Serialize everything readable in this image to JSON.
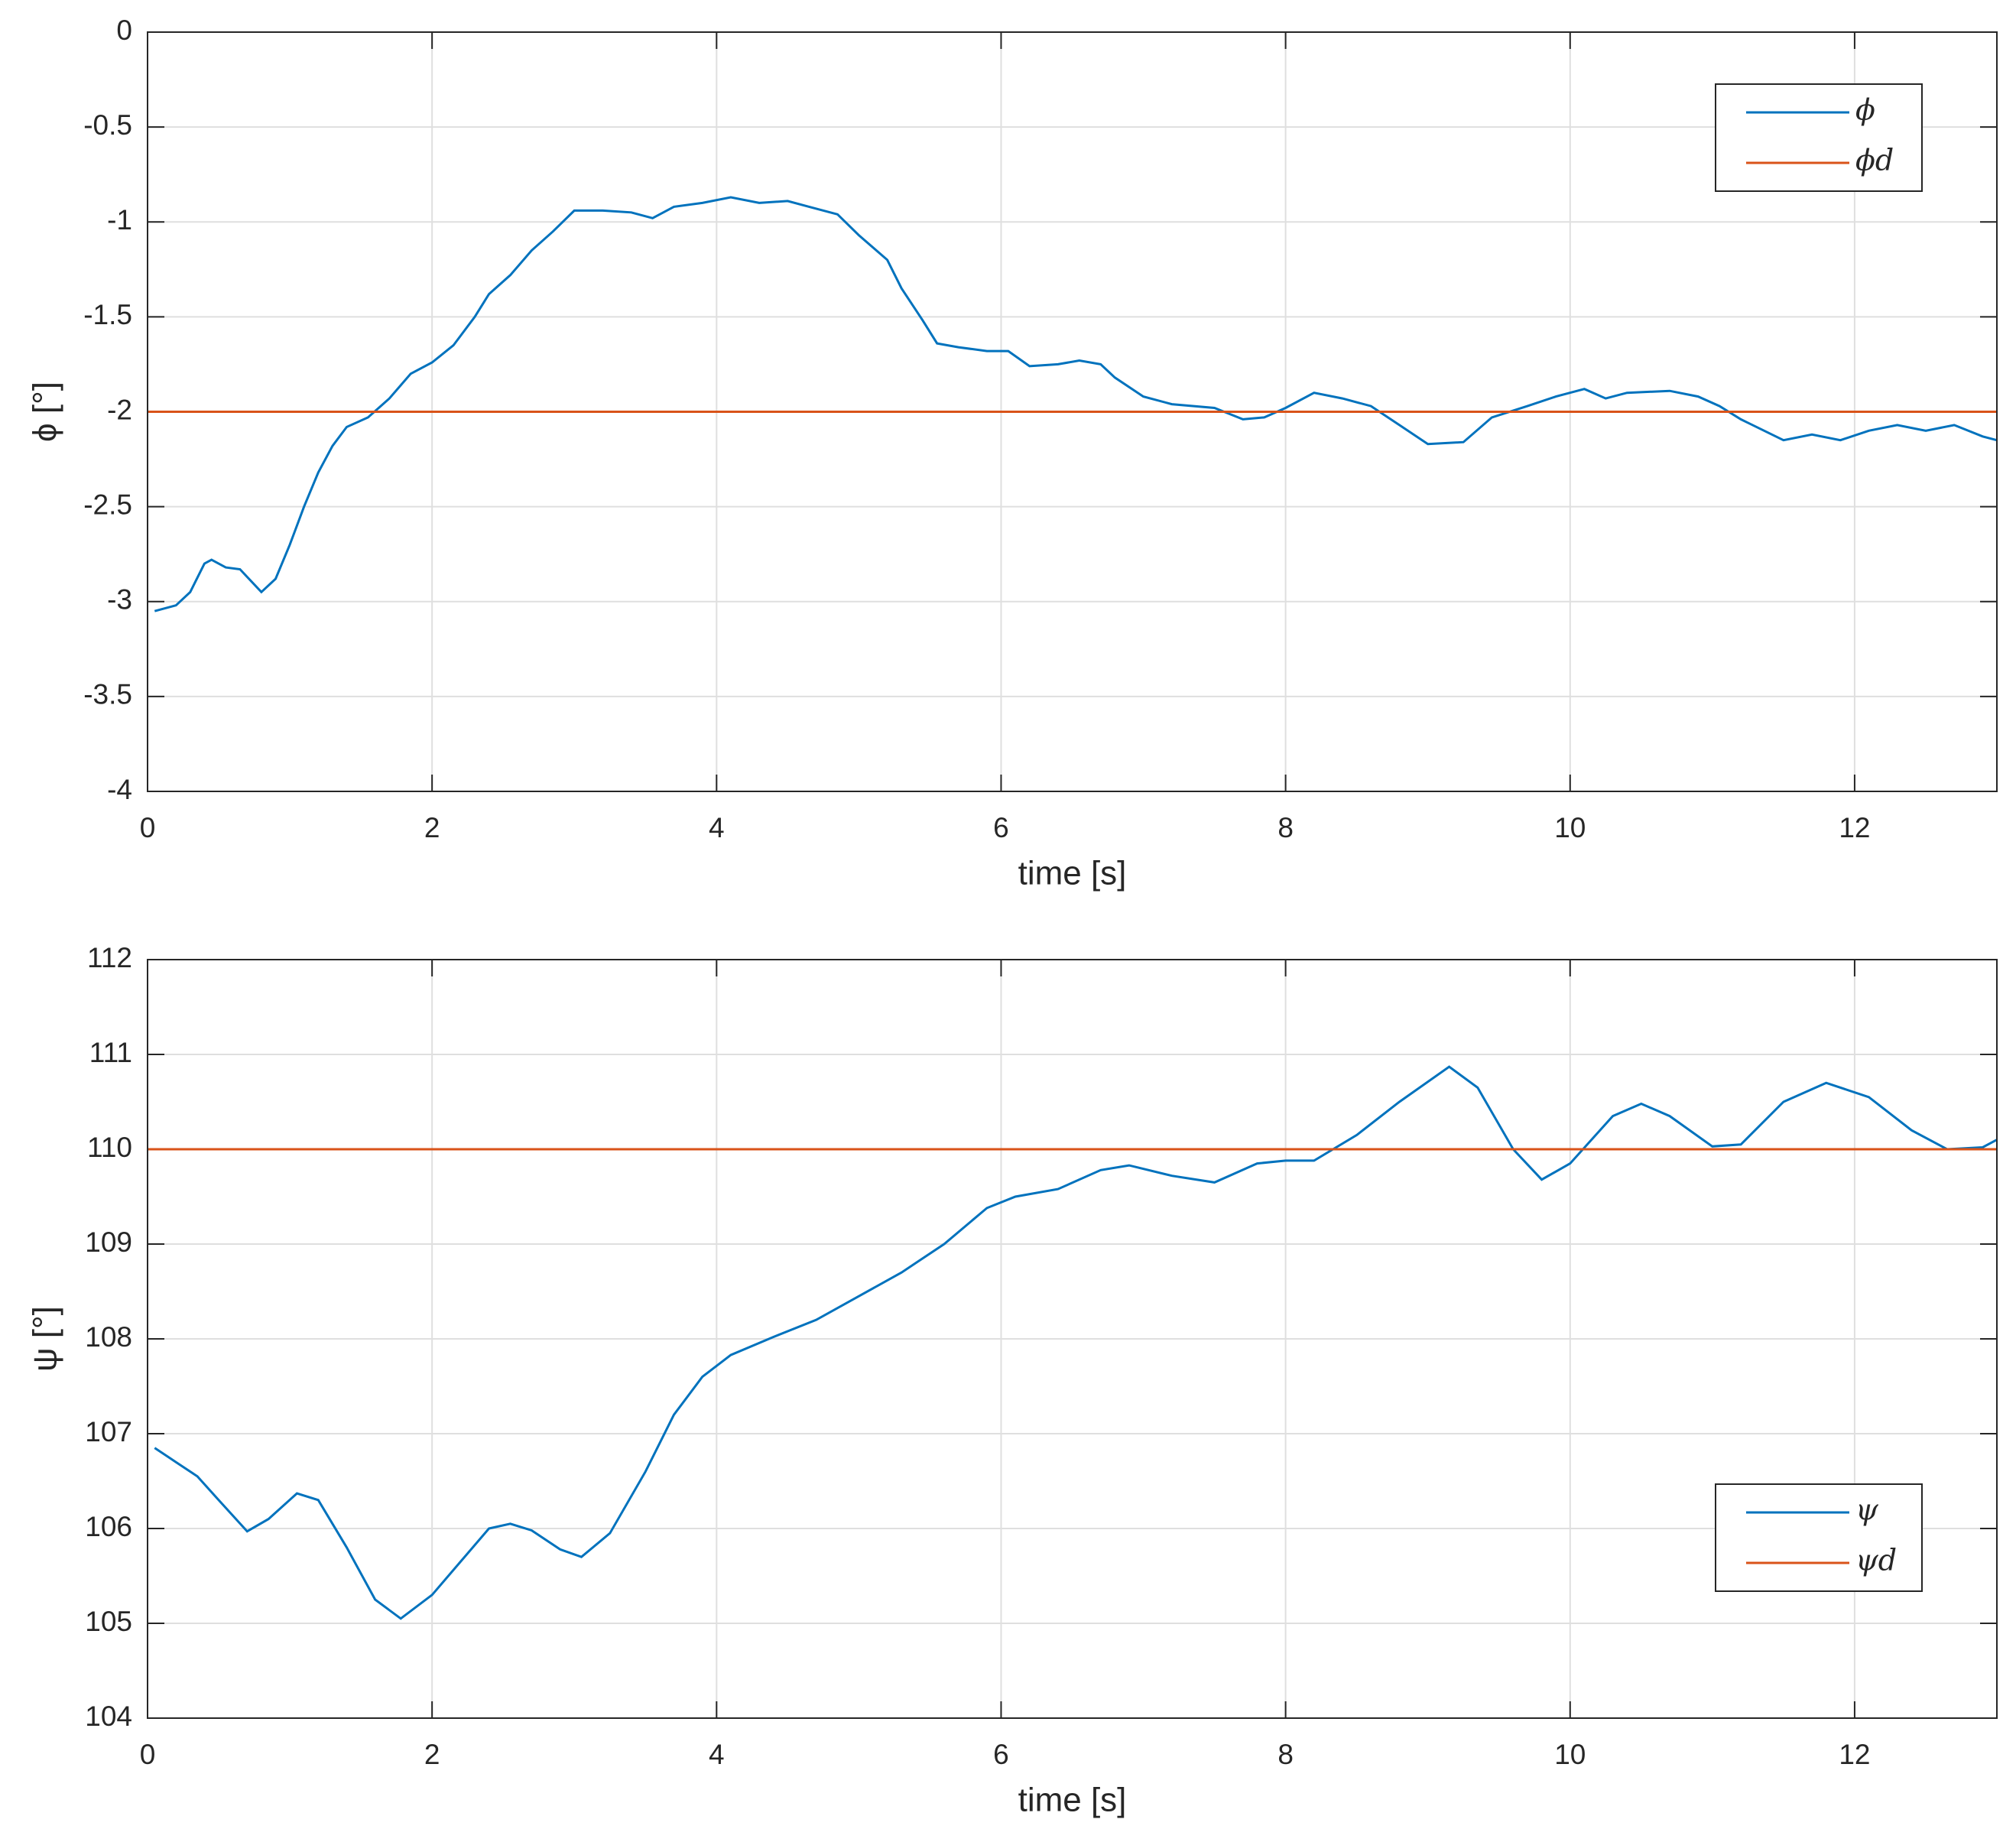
{
  "chart_data": [
    {
      "type": "line",
      "xlabel": "time [s]",
      "ylabel": "ϕ [°]",
      "xlim": [
        0,
        13
      ],
      "xticks": [
        0,
        2,
        4,
        6,
        8,
        10,
        12
      ],
      "ylim": [
        -4,
        0
      ],
      "yticks": [
        0,
        -0.5,
        -1,
        -1.5,
        -2,
        -2.5,
        -3,
        -3.5,
        -4
      ],
      "grid": true,
      "legend": "northeast",
      "series": [
        {
          "name": "ϕ",
          "color": "#0072bd",
          "x": [
            0.05,
            0.2,
            0.3,
            0.4,
            0.45,
            0.55,
            0.65,
            0.8,
            0.9,
            1.0,
            1.1,
            1.2,
            1.3,
            1.4,
            1.55,
            1.7,
            1.85,
            2.0,
            2.15,
            2.3,
            2.4,
            2.55,
            2.7,
            2.85,
            3.0,
            3.2,
            3.4,
            3.55,
            3.7,
            3.9,
            4.1,
            4.3,
            4.5,
            4.65,
            4.85,
            5.0,
            5.2,
            5.3,
            5.45,
            5.55,
            5.7,
            5.9,
            6.05,
            6.2,
            6.4,
            6.55,
            6.7,
            6.8,
            7.0,
            7.2,
            7.5,
            7.7,
            7.85,
            8.0,
            8.2,
            8.4,
            8.6,
            8.8,
            9.0,
            9.25,
            9.45,
            9.7,
            9.9,
            10.1,
            10.25,
            10.4,
            10.7,
            10.9,
            11.05,
            11.2,
            11.5,
            11.7,
            11.9,
            12.1,
            12.3,
            12.5,
            12.7,
            12.9,
            13.0
          ],
          "values": [
            -3.05,
            -3.02,
            -2.95,
            -2.8,
            -2.78,
            -2.82,
            -2.83,
            -2.95,
            -2.88,
            -2.7,
            -2.5,
            -2.32,
            -2.18,
            -2.08,
            -2.03,
            -1.93,
            -1.8,
            -1.74,
            -1.65,
            -1.5,
            -1.38,
            -1.28,
            -1.15,
            -1.05,
            -0.94,
            -0.94,
            -0.95,
            -0.98,
            -0.92,
            -0.9,
            -0.87,
            -0.9,
            -0.89,
            -0.92,
            -0.96,
            -1.07,
            -1.2,
            -1.35,
            -1.52,
            -1.64,
            -1.66,
            -1.68,
            -1.68,
            -1.76,
            -1.75,
            -1.73,
            -1.75,
            -1.82,
            -1.92,
            -1.96,
            -1.98,
            -2.04,
            -2.03,
            -1.98,
            -1.9,
            -1.93,
            -1.97,
            -2.07,
            -2.17,
            -2.16,
            -2.03,
            -1.97,
            -1.92,
            -1.88,
            -1.93,
            -1.9,
            -1.89,
            -1.92,
            -1.97,
            -2.04,
            -2.15,
            -2.12,
            -2.15,
            -2.1,
            -2.07,
            -2.1,
            -2.07,
            -2.13,
            -2.15
          ]
        },
        {
          "name": "ϕd",
          "color": "#d95319",
          "x": [
            0,
            13
          ],
          "values": [
            -2,
            -2
          ]
        }
      ]
    },
    {
      "type": "line",
      "xlabel": "time [s]",
      "ylabel": "ψ [°]",
      "xlim": [
        0,
        13
      ],
      "xticks": [
        0,
        2,
        4,
        6,
        8,
        10,
        12
      ],
      "ylim": [
        104,
        112
      ],
      "yticks": [
        104,
        105,
        106,
        107,
        108,
        109,
        110,
        111,
        112
      ],
      "grid": true,
      "legend": "southeast",
      "series": [
        {
          "name": "ψ",
          "color": "#0072bd",
          "x": [
            0.05,
            0.2,
            0.35,
            0.5,
            0.7,
            0.85,
            1.05,
            1.2,
            1.4,
            1.6,
            1.78,
            2.0,
            2.2,
            2.4,
            2.55,
            2.7,
            2.9,
            3.05,
            3.25,
            3.5,
            3.7,
            3.9,
            4.1,
            4.4,
            4.7,
            5.0,
            5.3,
            5.6,
            5.9,
            6.1,
            6.4,
            6.7,
            6.9,
            7.2,
            7.5,
            7.8,
            8.0,
            8.2,
            8.5,
            8.8,
            9.15,
            9.35,
            9.6,
            9.8,
            10.0,
            10.3,
            10.5,
            10.7,
            11.0,
            11.2,
            11.5,
            11.8,
            12.1,
            12.4,
            12.65,
            12.9,
            13.0
          ],
          "values": [
            106.85,
            106.7,
            106.55,
            106.3,
            105.97,
            106.1,
            106.37,
            106.3,
            105.8,
            105.25,
            105.05,
            105.3,
            105.65,
            106.0,
            106.05,
            105.98,
            105.78,
            105.7,
            105.95,
            106.6,
            107.2,
            107.6,
            107.83,
            108.02,
            108.2,
            108.45,
            108.7,
            109.0,
            109.38,
            109.5,
            109.58,
            109.78,
            109.83,
            109.72,
            109.65,
            109.85,
            109.88,
            109.88,
            110.15,
            110.5,
            110.87,
            110.65,
            110.0,
            109.68,
            109.85,
            110.35,
            110.48,
            110.35,
            110.03,
            110.05,
            110.5,
            110.7,
            110.55,
            110.2,
            110.0,
            110.02,
            110.1
          ]
        },
        {
          "name": "ψd",
          "color": "#d95319",
          "x": [
            0,
            13
          ],
          "values": [
            110,
            110
          ]
        }
      ]
    }
  ]
}
